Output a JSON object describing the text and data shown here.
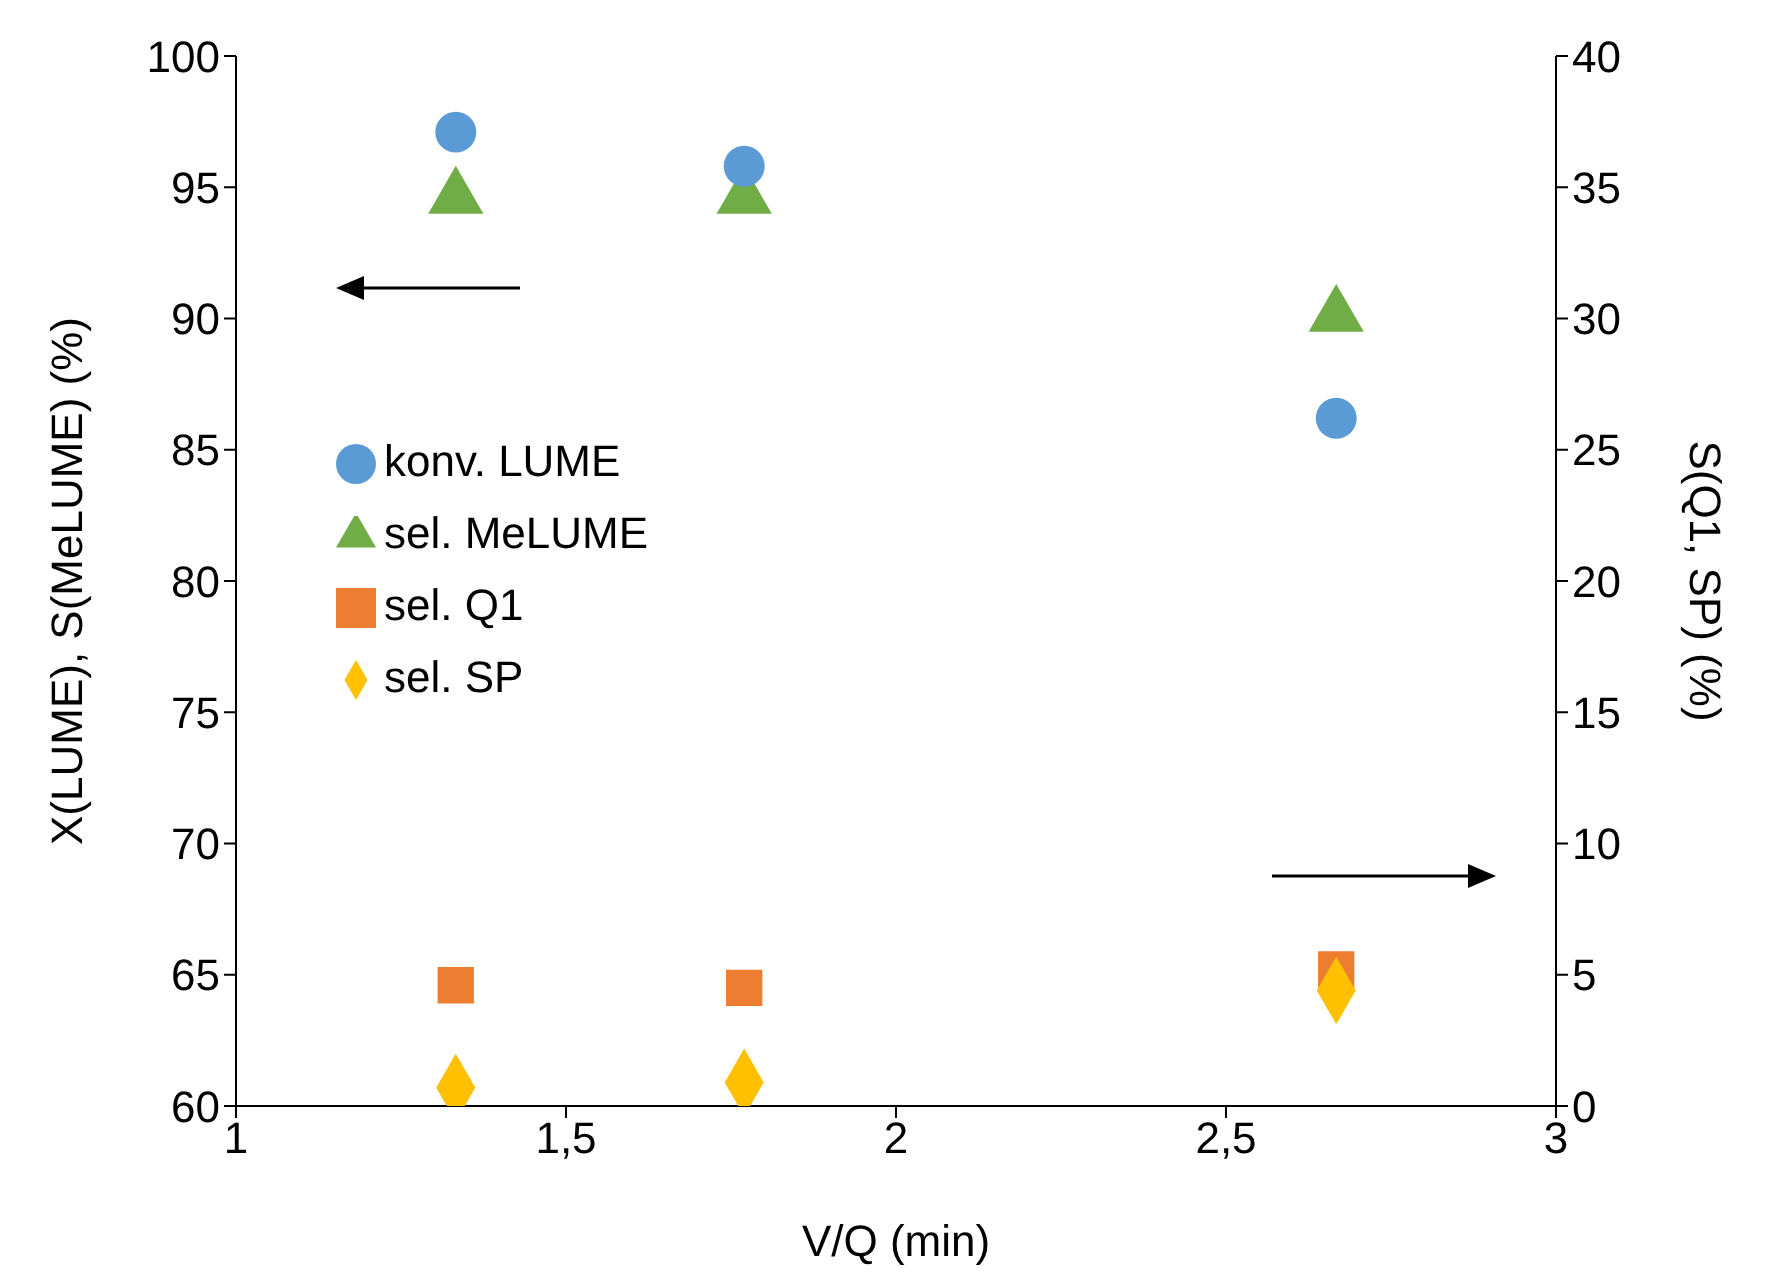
{
  "chart_data": {
    "type": "scatter",
    "xlabel": "V/Q (min)",
    "ylabel": "X(LUME), S(MeLUME) (%)",
    "y2label": "S(Q1, SP) (%)",
    "xlim": [
      1,
      3
    ],
    "xticks": [
      1,
      {
        "value": 1.5,
        "label": "1,5"
      },
      2,
      {
        "value": 2.5,
        "label": "2,5"
      },
      3
    ],
    "ylim": [
      60,
      100
    ],
    "yticks": [
      60,
      65,
      70,
      75,
      80,
      85,
      90,
      95,
      100
    ],
    "y2lim": [
      0,
      40
    ],
    "y2ticks": [
      0,
      5,
      10,
      15,
      20,
      25,
      30,
      35,
      40
    ],
    "grid": false,
    "legend": "left",
    "series": [
      {
        "name": "sel. MeLUME",
        "color": "#70ad47",
        "marker": "triangle",
        "x": [
          1.333,
          1.77,
          2.667
        ],
        "values": [
          94.6,
          94.6,
          90.1
        ]
      },
      {
        "name": "konv. LUME",
        "color": "#5b9bd5",
        "marker": "circle",
        "x": [
          1.333,
          1.77,
          2.667
        ],
        "values": [
          97.1,
          95.8,
          86.2
        ]
      },
      {
        "name": "sel. Q1",
        "color": "#ed7d31",
        "marker": "square",
        "axis": "y2",
        "x": [
          1.333,
          1.77,
          2.667
        ],
        "values": [
          4.6,
          4.5,
          5.2
        ]
      },
      {
        "name": "sel. SP",
        "color": "#ffc000",
        "marker": "diamond",
        "axis": "y2",
        "x": [
          1.333,
          1.77,
          2.667
        ],
        "values": [
          0.7,
          0.9,
          4.4
        ]
      }
    ]
  }
}
